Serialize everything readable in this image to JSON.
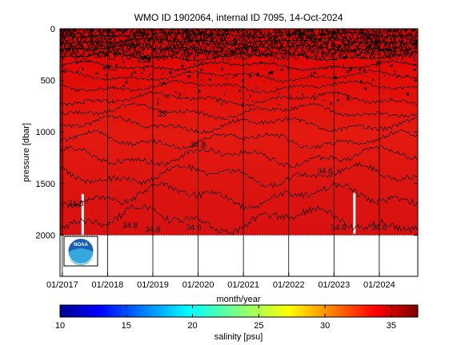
{
  "chart_data": {
    "type": "heatmap",
    "title": "WMO ID 1902064, internal ID 7095, 14-Oct-2024",
    "xlabel": "month/year",
    "ylabel": "pressure [dbar]",
    "colorbar_label": "salinity [psu]",
    "x_ticks": [
      "01/2017",
      "01/2018",
      "01/2019",
      "01/2020",
      "01/2021",
      "01/2022",
      "01/2023",
      "01/2024"
    ],
    "x_tick_values": [
      2017.0,
      2018.0,
      2019.0,
      2020.0,
      2021.0,
      2022.0,
      2023.0,
      2024.0
    ],
    "xlim": [
      2016.95,
      2024.85
    ],
    "y_ticks": [
      "0",
      "500",
      "1000",
      "1500",
      "2000"
    ],
    "y_tick_values": [
      0,
      500,
      1000,
      1500,
      2000
    ],
    "ylim": [
      2400,
      0
    ],
    "max_profile_pressure": 2000,
    "colorbar_ticks": [
      "10",
      "15",
      "20",
      "25",
      "30",
      "35"
    ],
    "colorbar_tick_values": [
      10,
      15,
      20,
      25,
      30,
      35
    ],
    "colorbar_range": [
      10,
      37
    ],
    "colormap": "jet",
    "grid": "vertical lines at year boundaries",
    "salinity_range_shown": [
      34.5,
      36.5
    ],
    "contour_labels": [
      {
        "text": "34.8",
        "x": 2019.0,
        "p": 1970
      },
      {
        "text": "34.6",
        "x": 2019.9,
        "p": 1950
      },
      {
        "text": "34.6",
        "x": 2024.0,
        "p": 1950
      },
      {
        "text": "34.8",
        "x": 2023.1,
        "p": 1950
      },
      {
        "text": "34.8",
        "x": 2018.5,
        "p": 1930
      },
      {
        "text": "34.6",
        "x": 2022.8,
        "p": 1400
      },
      {
        "text": "35.2",
        "x": 2018.8,
        "p": 330
      },
      {
        "text": "34.8",
        "x": 2020.0,
        "p": 1150
      },
      {
        "text": "35",
        "x": 2019.2,
        "p": 850
      },
      {
        "text": "3692",
        "x": 2017.1,
        "p": 55
      },
      {
        "text": "34.6",
        "x": 2017.3,
        "p": 1720
      }
    ],
    "data_gaps": [
      {
        "x": 2017.45,
        "p_from": 1600,
        "p_to": 2000
      },
      {
        "x": 2023.45,
        "p_from": 1590,
        "p_to": 1990
      }
    ],
    "logo": "NOAA"
  }
}
